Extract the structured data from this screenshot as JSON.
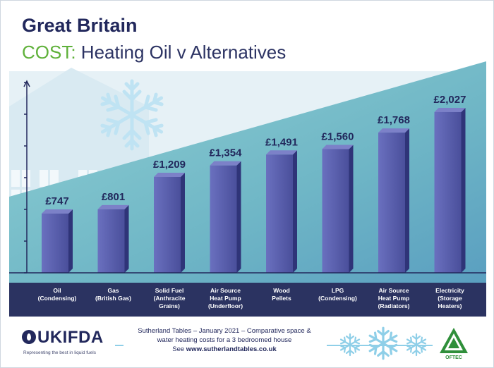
{
  "header": {
    "title": "Great Britain",
    "subtitle_accent": "COST:",
    "subtitle_rest": " Heating Oil v Alternatives"
  },
  "chart_data": {
    "type": "bar",
    "title": "Great Britain",
    "subtitle": "COST: Heating Oil v Alternatives",
    "xlabel": "",
    "ylabel": "",
    "ylim": [
      0,
      2400
    ],
    "grid": false,
    "categories": [
      "Oil\n(Condensing)",
      "Gas\n(British Gas)",
      "Solid Fuel\n(Anthracite\nGrains)",
      "Air Source\nHeat Pump\n(Underfloor)",
      "Wood\nPellets",
      "LPG\n(Condensing)",
      "Air Source\nHeat Pump\n(Radiators)",
      "Electricity\n(Storage\nHeaters)"
    ],
    "values": [
      747,
      801,
      1209,
      1354,
      1491,
      1560,
      1768,
      2027
    ],
    "value_labels": [
      "£747",
      "£801",
      "£1,209",
      "£1,354",
      "£1,491",
      "£1,560",
      "£1,768",
      "£2,027"
    ]
  },
  "footer": {
    "logo": "UKIFDA",
    "tagline": "Representing the best in liquid fuels",
    "note_line1": "Sutherland Tables – January 2021 – Comparative space &",
    "note_line2": "water heating costs for a 3 bedroomed house",
    "note_line3_prefix": "See ",
    "note_url": "www.sutherlandtables.co.uk",
    "badge": "OFTEC"
  },
  "colors": {
    "navy": "#22285c",
    "accent_green": "#5fb13a",
    "bar_front": "#5459a8",
    "bar_side": "#2f3478",
    "band": "#2b3361",
    "teal_top": "#6aaec6",
    "teal_bottom": "#7cc8cf"
  }
}
